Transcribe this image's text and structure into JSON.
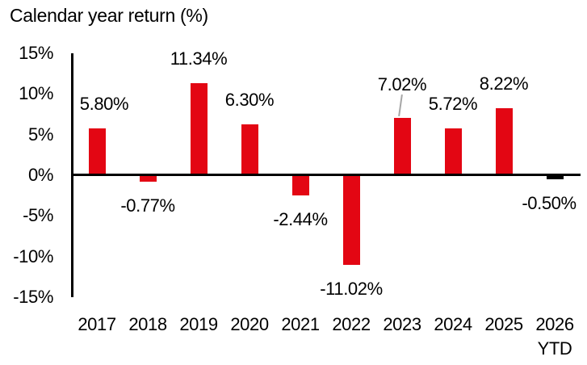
{
  "colors": {
    "bar_red": "#e30613",
    "bar_black": "#000000",
    "axis": "#000000",
    "text": "#000000",
    "leader_line": "#a6a6a6",
    "background": "#ffffff"
  },
  "chart_data": {
    "type": "bar",
    "title": "Calendar year return (%)",
    "xlabel": "",
    "ylabel": "Calendar year return (%)",
    "ylim": [
      -15,
      15
    ],
    "grid": "off",
    "legend": "none",
    "categories": [
      "2017",
      "2018",
      "2019",
      "2020",
      "2021",
      "2022",
      "2023",
      "2024",
      "2025",
      "2026 YTD"
    ],
    "values": [
      5.8,
      -0.77,
      11.34,
      6.3,
      -2.44,
      -11.02,
      7.02,
      5.72,
      8.22,
      -0.5
    ],
    "yticks": [
      15,
      10,
      5,
      0,
      -5,
      -10,
      -15
    ],
    "ytick_labels": [
      "15%",
      "10%",
      "5%",
      "0%",
      "-5%",
      "-10%",
      "-15%"
    ],
    "points": [
      {
        "category": "2017",
        "value": 5.8,
        "label": "5.80%",
        "color": "#e30613"
      },
      {
        "category": "2018",
        "value": -0.77,
        "label": "-0.77%",
        "color": "#e30613"
      },
      {
        "category": "2019",
        "value": 11.34,
        "label": "11.34%",
        "color": "#e30613"
      },
      {
        "category": "2020",
        "value": 6.3,
        "label": "6.30%",
        "color": "#e30613"
      },
      {
        "category": "2021",
        "value": -2.44,
        "label": "-2.44%",
        "color": "#e30613"
      },
      {
        "category": "2022",
        "value": -11.02,
        "label": "-11.02%",
        "color": "#e30613"
      },
      {
        "category": "2023",
        "value": 7.02,
        "label": "7.02%",
        "color": "#e30613",
        "callout": true
      },
      {
        "category": "2024",
        "value": 5.72,
        "label": "5.72%",
        "color": "#e30613"
      },
      {
        "category": "2025",
        "value": 8.22,
        "label": "8.22%",
        "color": "#e30613"
      },
      {
        "category": "2026",
        "sub_label": "YTD",
        "value": -0.5,
        "label": "-0.50%",
        "color": "#000000"
      }
    ]
  }
}
